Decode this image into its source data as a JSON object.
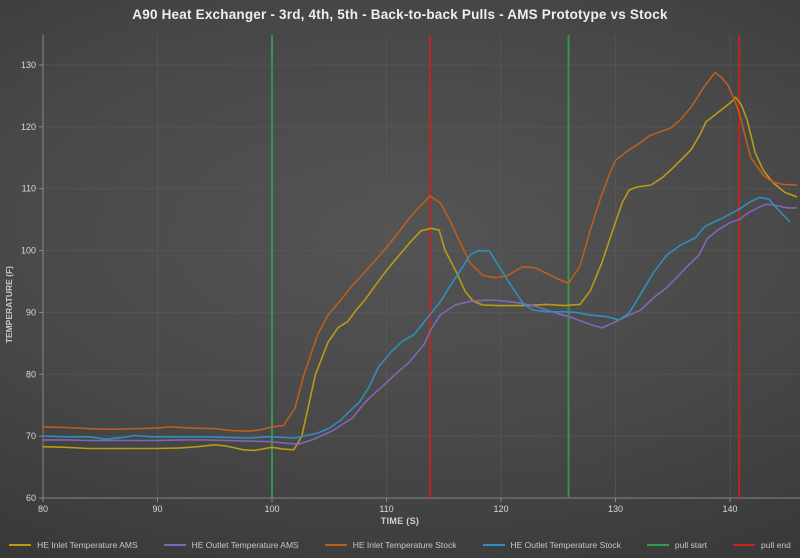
{
  "title": "A90 Heat Exchanger - 3rd, 4th, 5th - Back-to-back Pulls - AMS Prototype vs Stock",
  "chart_data": {
    "type": "line",
    "title": "A90 Heat Exchanger - 3rd, 4th, 5th - Back-to-back Pulls - AMS Prototype vs Stock",
    "xlabel": "TIME (S)",
    "ylabel": "TEMPERATURE (F)",
    "grid": true,
    "legend_position": "bottom",
    "x_axis": {
      "min": 80,
      "max": 146.1,
      "ticks": [
        80,
        90,
        100,
        110,
        120,
        130,
        140
      ]
    },
    "y_axis": {
      "min": 60,
      "max": 134.8,
      "ticks": [
        60,
        70,
        80,
        90,
        100,
        110,
        120,
        130
      ]
    },
    "series": [
      {
        "name": "HE Inlet Temperature AMS",
        "color": "#b89b16",
        "points": [
          [
            80,
            68.3
          ],
          [
            82,
            68.2
          ],
          [
            84,
            68.0
          ],
          [
            87,
            68.0
          ],
          [
            90,
            68.0
          ],
          [
            92,
            68.1
          ],
          [
            93.5,
            68.3
          ],
          [
            95,
            68.6
          ],
          [
            96,
            68.4
          ],
          [
            97.5,
            67.8
          ],
          [
            98.5,
            67.7
          ],
          [
            100,
            68.2
          ],
          [
            101,
            67.9
          ],
          [
            101.9,
            67.8
          ],
          [
            102.6,
            70.0
          ],
          [
            103.8,
            80.0
          ],
          [
            104.9,
            85.2
          ],
          [
            105.8,
            87.6
          ],
          [
            106.6,
            88.5
          ],
          [
            107.4,
            90.5
          ],
          [
            108.1,
            92.0
          ],
          [
            109,
            94.3
          ],
          [
            110,
            96.8
          ],
          [
            111,
            99.0
          ],
          [
            112,
            101.2
          ],
          [
            113,
            103.2
          ],
          [
            113.9,
            103.6
          ],
          [
            114.6,
            103.3
          ],
          [
            115.1,
            100.1
          ],
          [
            116,
            96.9
          ],
          [
            116.9,
            93.3
          ],
          [
            117.6,
            91.8
          ],
          [
            118.4,
            91.2
          ],
          [
            120,
            91.1
          ],
          [
            122,
            91.1
          ],
          [
            124,
            91.3
          ],
          [
            125.5,
            91.1
          ],
          [
            126.9,
            91.3
          ],
          [
            127.8,
            93.5
          ],
          [
            128.8,
            98.0
          ],
          [
            129.8,
            103.5
          ],
          [
            130.6,
            107.8
          ],
          [
            131.2,
            109.8
          ],
          [
            131.9,
            110.3
          ],
          [
            133.1,
            110.6
          ],
          [
            134.1,
            111.8
          ],
          [
            134.8,
            113.0
          ],
          [
            135.8,
            114.8
          ],
          [
            136.6,
            116.3
          ],
          [
            137.4,
            118.8
          ],
          [
            137.9,
            120.8
          ],
          [
            139.2,
            122.7
          ],
          [
            140.1,
            124.0
          ],
          [
            140.5,
            124.8
          ],
          [
            141,
            123.5
          ],
          [
            141.5,
            121.1
          ],
          [
            142.2,
            115.8
          ],
          [
            142.9,
            113.0
          ],
          [
            143.8,
            110.9
          ],
          [
            144.8,
            109.4
          ],
          [
            145.8,
            108.7
          ]
        ]
      },
      {
        "name": "HE Outlet Temperature AMS",
        "color": "#8464b4",
        "points": [
          [
            80,
            69.4
          ],
          [
            82,
            69.4
          ],
          [
            84,
            69.3
          ],
          [
            86,
            69.3
          ],
          [
            88,
            69.3
          ],
          [
            90,
            69.3
          ],
          [
            92,
            69.4
          ],
          [
            94,
            69.4
          ],
          [
            96,
            69.3
          ],
          [
            98,
            69.2
          ],
          [
            100,
            69.1
          ],
          [
            101,
            68.9
          ],
          [
            102.3,
            68.7
          ],
          [
            103.5,
            69.4
          ],
          [
            104.5,
            70.2
          ],
          [
            105.4,
            71.0
          ],
          [
            106.4,
            72.2
          ],
          [
            107,
            72.9
          ],
          [
            108.1,
            75.4
          ],
          [
            109,
            77.0
          ],
          [
            109.8,
            78.3
          ],
          [
            111,
            80.4
          ],
          [
            111.9,
            81.8
          ],
          [
            113.3,
            84.9
          ],
          [
            113.9,
            87.3
          ],
          [
            114.7,
            89.6
          ],
          [
            116,
            91.2
          ],
          [
            117.3,
            91.8
          ],
          [
            118.8,
            92.0
          ],
          [
            120,
            91.9
          ],
          [
            121.7,
            91.5
          ],
          [
            123,
            91.0
          ],
          [
            124,
            90.4
          ],
          [
            125,
            89.8
          ],
          [
            126,
            89.3
          ],
          [
            127,
            88.6
          ],
          [
            127.9,
            88.0
          ],
          [
            128.8,
            87.5
          ],
          [
            129.8,
            88.3
          ],
          [
            131,
            89.4
          ],
          [
            132.2,
            90.4
          ],
          [
            133.4,
            92.5
          ],
          [
            134.4,
            93.9
          ],
          [
            135.1,
            95.2
          ],
          [
            136.3,
            97.5
          ],
          [
            137.3,
            99.3
          ],
          [
            138,
            101.9
          ],
          [
            139,
            103.4
          ],
          [
            140,
            104.5
          ],
          [
            140.8,
            105.0
          ],
          [
            141.6,
            106.1
          ],
          [
            142.5,
            107.0
          ],
          [
            143.2,
            107.5
          ],
          [
            144,
            107.3
          ],
          [
            145,
            106.9
          ],
          [
            145.8,
            106.9
          ]
        ]
      },
      {
        "name": "HE Inlet Temperature Stock",
        "color": "#bc5e1f",
        "points": [
          [
            80,
            71.5
          ],
          [
            82,
            71.4
          ],
          [
            84,
            71.2
          ],
          [
            86,
            71.1
          ],
          [
            88,
            71.2
          ],
          [
            90,
            71.3
          ],
          [
            91,
            71.5
          ],
          [
            93,
            71.3
          ],
          [
            95,
            71.2
          ],
          [
            96.5,
            70.9
          ],
          [
            98,
            70.8
          ],
          [
            99.2,
            71.1
          ],
          [
            100,
            71.5
          ],
          [
            101,
            71.7
          ],
          [
            102,
            74.5
          ],
          [
            102.8,
            80.0
          ],
          [
            104,
            86.5
          ],
          [
            104.9,
            89.6
          ],
          [
            106,
            92.0
          ],
          [
            107,
            94.3
          ],
          [
            108,
            96.3
          ],
          [
            109,
            98.4
          ],
          [
            110,
            100.5
          ],
          [
            111,
            102.8
          ],
          [
            112,
            105.3
          ],
          [
            113,
            107.3
          ],
          [
            113.8,
            108.8
          ],
          [
            114.7,
            107.7
          ],
          [
            115.5,
            105.0
          ],
          [
            116.2,
            102.2
          ],
          [
            117.3,
            98.0
          ],
          [
            118.4,
            96.0
          ],
          [
            119.5,
            95.6
          ],
          [
            120.5,
            95.9
          ],
          [
            121.9,
            97.4
          ],
          [
            123,
            97.2
          ],
          [
            124,
            96.3
          ],
          [
            125,
            95.4
          ],
          [
            125.9,
            94.7
          ],
          [
            126.9,
            97.5
          ],
          [
            127.8,
            103.3
          ],
          [
            128.7,
            108.5
          ],
          [
            129.5,
            112.5
          ],
          [
            130,
            114.6
          ],
          [
            130.9,
            115.9
          ],
          [
            131.9,
            117.1
          ],
          [
            133,
            118.6
          ],
          [
            133.9,
            119.2
          ],
          [
            134.8,
            119.8
          ],
          [
            135.7,
            121.2
          ],
          [
            136.6,
            123.2
          ],
          [
            137.7,
            126.4
          ],
          [
            138.7,
            128.8
          ],
          [
            139.3,
            127.9
          ],
          [
            139.8,
            126.8
          ],
          [
            140.3,
            124.8
          ],
          [
            140.8,
            122.3
          ],
          [
            141.8,
            115.1
          ],
          [
            142.9,
            112.2
          ],
          [
            143.7,
            111.1
          ],
          [
            144.6,
            110.7
          ],
          [
            145.8,
            110.6
          ]
        ]
      },
      {
        "name": "HE Outlet Temperature Stock",
        "color": "#2e8fbe",
        "points": [
          [
            80,
            70.0
          ],
          [
            82,
            69.9
          ],
          [
            84,
            69.9
          ],
          [
            85.5,
            69.5
          ],
          [
            87,
            69.8
          ],
          [
            88,
            70.1
          ],
          [
            89.5,
            69.9
          ],
          [
            92,
            69.9
          ],
          [
            94,
            69.9
          ],
          [
            96,
            69.8
          ],
          [
            98,
            69.7
          ],
          [
            99.5,
            69.9
          ],
          [
            101,
            69.8
          ],
          [
            102,
            69.7
          ],
          [
            103,
            70.1
          ],
          [
            104,
            70.5
          ],
          [
            105,
            71.3
          ],
          [
            106,
            72.6
          ],
          [
            107,
            74.4
          ],
          [
            107.6,
            75.4
          ],
          [
            108.5,
            78.0
          ],
          [
            109.3,
            81.2
          ],
          [
            110.4,
            83.6
          ],
          [
            111.4,
            85.4
          ],
          [
            112.4,
            86.4
          ],
          [
            113.6,
            89.2
          ],
          [
            114.7,
            91.7
          ],
          [
            115.6,
            94.4
          ],
          [
            116.5,
            96.9
          ],
          [
            117.3,
            99.3
          ],
          [
            118,
            100.0
          ],
          [
            119,
            99.9
          ],
          [
            119.9,
            97.2
          ],
          [
            121,
            94.0
          ],
          [
            122,
            91.3
          ],
          [
            122.8,
            90.4
          ],
          [
            124,
            90.1
          ],
          [
            125.5,
            90.1
          ],
          [
            126.5,
            90.0
          ],
          [
            127.8,
            89.6
          ],
          [
            129.3,
            89.3
          ],
          [
            130.3,
            88.8
          ],
          [
            131.2,
            89.9
          ],
          [
            132.4,
            93.6
          ],
          [
            133.3,
            96.4
          ],
          [
            134.5,
            99.3
          ],
          [
            135.7,
            100.9
          ],
          [
            137,
            102.1
          ],
          [
            137.8,
            103.9
          ],
          [
            139.5,
            105.4
          ],
          [
            140.8,
            106.7
          ],
          [
            141.8,
            107.9
          ],
          [
            142.6,
            108.6
          ],
          [
            143.4,
            108.3
          ],
          [
            144.2,
            106.6
          ],
          [
            145.2,
            104.7
          ]
        ]
      }
    ],
    "vlines": [
      {
        "x": 100,
        "label": "pull start",
        "color": "#2f9e52"
      },
      {
        "x": 113.8,
        "label": "pull end",
        "color": "#c7241c"
      },
      {
        "x": 125.9,
        "label": "pull start",
        "color": "#2f9e52"
      },
      {
        "x": 140.8,
        "label": "pull end",
        "color": "#c7241c"
      }
    ],
    "legend": [
      {
        "label": "HE Inlet Temperature AMS",
        "color": "#b89b16"
      },
      {
        "label": "HE Outlet Temperature AMS",
        "color": "#8464b4"
      },
      {
        "label": "HE Inlet Temperature Stock",
        "color": "#bc5e1f"
      },
      {
        "label": "HE Outlet Temperature Stock",
        "color": "#2e8fbe"
      },
      {
        "label": "pull start",
        "color": "#2f9e52"
      },
      {
        "label": "pull end",
        "color": "#c7241c"
      }
    ],
    "style": {
      "grid_color": "#606060",
      "axis_color": "#989898",
      "tick_label_color": "#d9d9d9"
    }
  }
}
